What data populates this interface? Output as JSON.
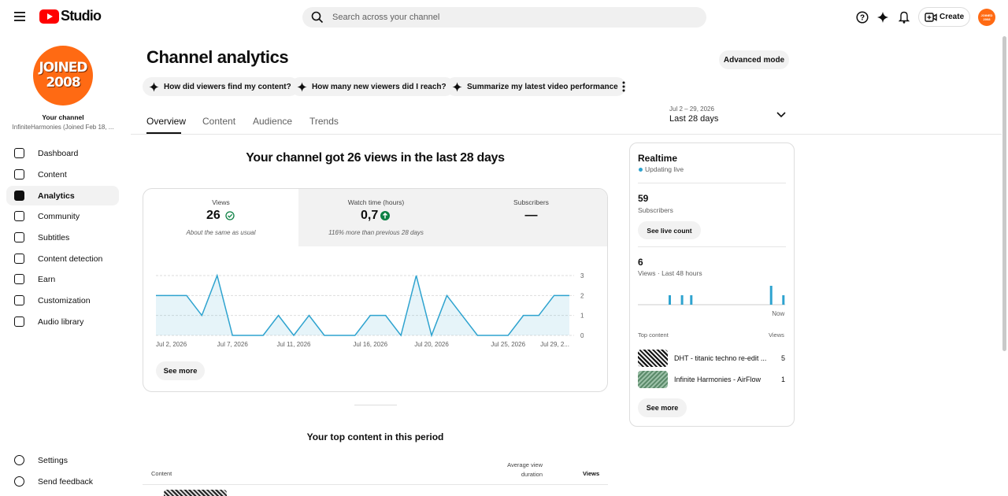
{
  "header": {
    "logo": "Studio",
    "search_placeholder": "Search across your channel",
    "create": "Create"
  },
  "sidebar": {
    "avatar": [
      "JOINED",
      "2008"
    ],
    "channel_label": "Your channel",
    "channel_name": "InfiniteHarmonies (Joined Feb 18, ...",
    "nav": [
      "Dashboard",
      "Content",
      "Analytics",
      "Community",
      "Subtitles",
      "Content detection",
      "Earn",
      "Customization",
      "Audio library"
    ],
    "footer_nav": [
      "Settings",
      "Send feedback"
    ]
  },
  "page": {
    "title": "Channel analytics",
    "advanced_mode": "Advanced mode",
    "chips": [
      "How did viewers find my content?",
      "How many new viewers did I reach?",
      "Summarize my latest video performance"
    ],
    "tabs": [
      "Overview",
      "Content",
      "Audience",
      "Trends"
    ],
    "date_range": "Jul 2 – 29, 2026",
    "period": "Last 28 days",
    "headline": "Your channel got 26 views in the last 28 days",
    "metrics": [
      {
        "label": "Views",
        "value": 26,
        "note": "About the same as usual"
      },
      {
        "label": "Watch time (hours)",
        "value": "0,7",
        "note": "116% more than previous 28 days"
      },
      {
        "label": "Subscribers",
        "value": "—"
      }
    ],
    "see_more": "See more",
    "top_content": {
      "title": "Your top content in this period",
      "columns": [
        "Content",
        "Average view duration",
        "Views"
      ]
    }
  },
  "realtime": {
    "title": "Realtime",
    "status": "Updating live",
    "subscribers": 59,
    "subscribers_label": "Subscribers",
    "see_live_count": "See live count",
    "views": 6,
    "views_label": "Views · Last 48 hours",
    "top_content_label": "Top content",
    "views_column": "Views",
    "rows": [
      {
        "title": "DHT - titanic techno re-edit ...",
        "views": 5
      },
      {
        "title": "Infinite Harmonies - AirFlow",
        "views": 1
      }
    ],
    "see_more": "See more"
  },
  "chart_data": [
    {
      "type": "line",
      "categories": [
        "Jul 2, 2026",
        null,
        null,
        null,
        null,
        "Jul 7, 2026",
        null,
        null,
        null,
        "Jul 11, 2026",
        null,
        null,
        null,
        null,
        "Jul 16, 2026",
        null,
        null,
        null,
        "Jul 20, 2026",
        null,
        null,
        null,
        null,
        "Jul 25, 2026",
        null,
        null,
        null,
        "Jul 29, 2..."
      ],
      "values": [
        2,
        2,
        2,
        1,
        3,
        0,
        0,
        0,
        1,
        0,
        1,
        0,
        0,
        0,
        1,
        1,
        0,
        3,
        0,
        2,
        1,
        0,
        0,
        0,
        1,
        1,
        2,
        2
      ],
      "color": "#2ea3cf",
      "ylim": [
        0,
        3
      ],
      "yticks": [
        0,
        1,
        2,
        3
      ],
      "grid": true
    },
    {
      "type": "bar",
      "categories": [
        null,
        null,
        null,
        null,
        null,
        null,
        null,
        null,
        null,
        null,
        null,
        null,
        null,
        null,
        null,
        null,
        null,
        null,
        null,
        null,
        null,
        null,
        null,
        null,
        null,
        null,
        null,
        null,
        null,
        null,
        null,
        null,
        null,
        null,
        null,
        null,
        null,
        null,
        null,
        null,
        null,
        null,
        null,
        null,
        null,
        null,
        null,
        "Now"
      ],
      "values": [
        0,
        0,
        0,
        0,
        0,
        0,
        0,
        0,
        0,
        0,
        1,
        0,
        0,
        0,
        1,
        0,
        0,
        1,
        0,
        0,
        0,
        0,
        0,
        0,
        0,
        0,
        0,
        0,
        0,
        0,
        0,
        0,
        0,
        0,
        0,
        0,
        0,
        0,
        0,
        0,
        0,
        0,
        0,
        2,
        0,
        0,
        0,
        1
      ],
      "color": "#2ea3cf"
    }
  ]
}
